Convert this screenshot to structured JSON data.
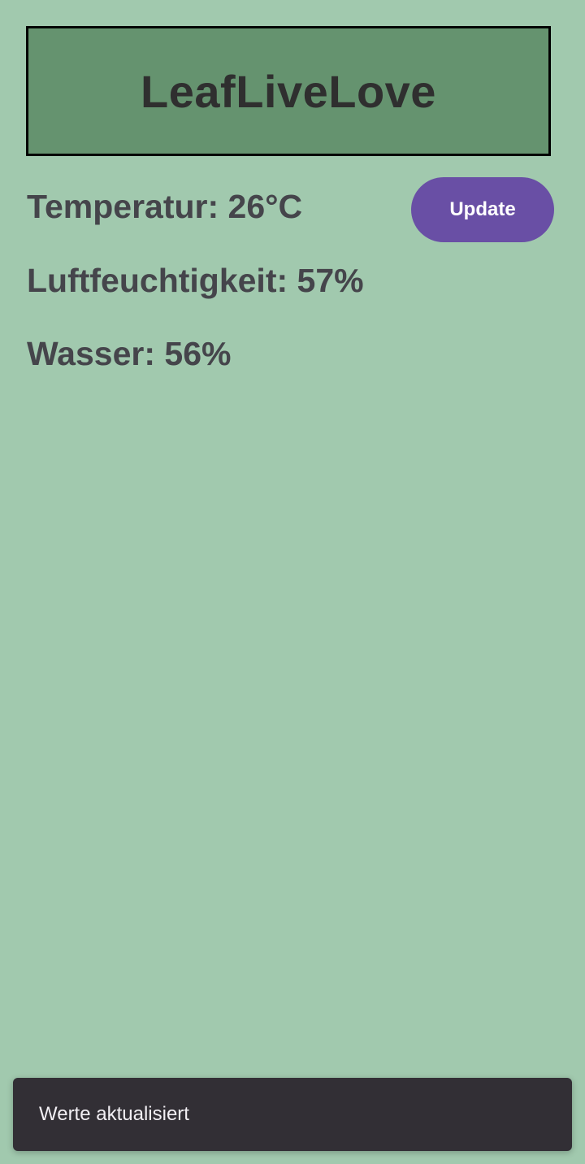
{
  "header": {
    "title": "LeafLiveLove"
  },
  "readings": {
    "temperature": "Temperatur: 26°C",
    "humidity": "Luftfeuchtigkeit: 57%",
    "water": "Wasser: 56%"
  },
  "actions": {
    "update_label": "Update"
  },
  "snackbar": {
    "message": "Werte aktualisiert"
  },
  "colors": {
    "background": "#a1c9ae",
    "header_background": "#65936f",
    "button": "#694fa5",
    "snackbar": "#322f35"
  }
}
